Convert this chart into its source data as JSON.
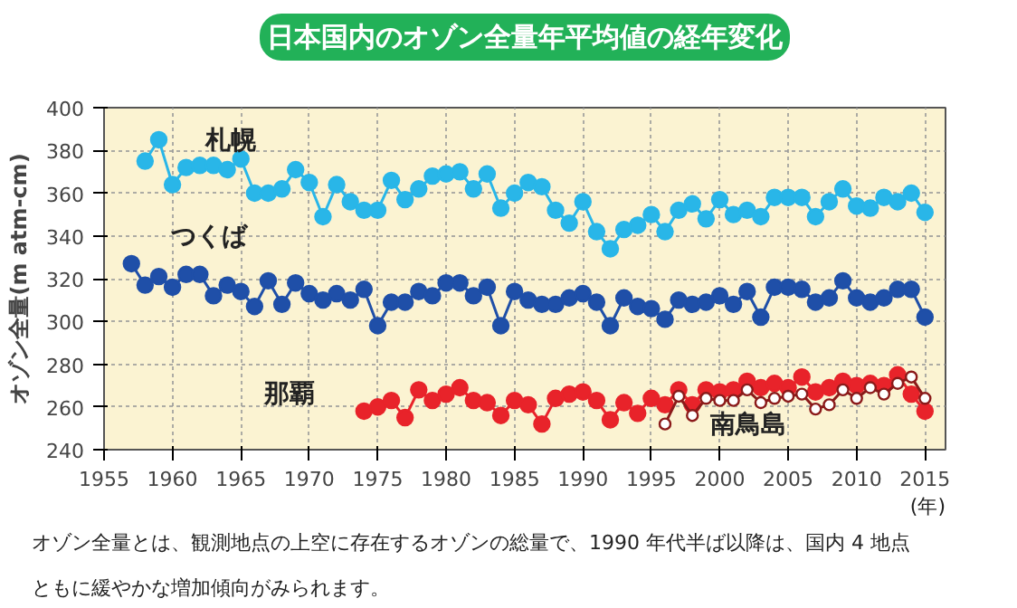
{
  "chart_data": {
    "type": "line",
    "title": "日本国内のオゾン全量年平均値の経年変化",
    "xlabel": "(年)",
    "ylabel": "オゾン全量(m atm-cm)",
    "xlim": [
      1955,
      2016.5
    ],
    "xticks": [
      1955,
      1960,
      1965,
      1970,
      1975,
      1980,
      1985,
      1990,
      1995,
      2000,
      2005,
      2010,
      2015
    ],
    "ylim": [
      240,
      400
    ],
    "yticks": [
      240,
      260,
      280,
      300,
      320,
      340,
      360,
      380,
      400
    ],
    "grid": true,
    "marker": "circle",
    "line_style": "solid",
    "annotations": [
      "オゾン全量とは、観測地点の上空に存在するオゾンの総量で、1990 年代半ば以降は、国内 4 地点ともに緩やかな増加傾向がみられます。"
    ],
    "series": [
      {
        "name": "札幌",
        "color": "#29b6e8",
        "x": [
          1958,
          1959,
          1960,
          1961,
          1962,
          1963,
          1964,
          1965,
          1966,
          1967,
          1968,
          1969,
          1970,
          1971,
          1972,
          1973,
          1974,
          1975,
          1976,
          1977,
          1978,
          1979,
          1980,
          1981,
          1982,
          1983,
          1984,
          1985,
          1986,
          1987,
          1988,
          1989,
          1990,
          1991,
          1992,
          1993,
          1994,
          1995,
          1996,
          1997,
          1998,
          1999,
          2000,
          2001,
          2002,
          2003,
          2004,
          2005,
          2006,
          2007,
          2008,
          2009,
          2010,
          2011,
          2012,
          2013,
          2014,
          2015
        ],
        "values": [
          375,
          385,
          364,
          372,
          373,
          373,
          371,
          376,
          360,
          360,
          362,
          371,
          365,
          349,
          364,
          356,
          352,
          352,
          366,
          357,
          362,
          368,
          369,
          370,
          362,
          369,
          353,
          360,
          365,
          363,
          352,
          346,
          356,
          342,
          334,
          343,
          345,
          350,
          342,
          352,
          355,
          348,
          357,
          350,
          352,
          349,
          358,
          358,
          358,
          349,
          356,
          362,
          354,
          353,
          358,
          356,
          360,
          351
        ]
      },
      {
        "name": "つくば",
        "color": "#1f4fa8",
        "x": [
          1957,
          1958,
          1959,
          1960,
          1961,
          1962,
          1963,
          1964,
          1965,
          1966,
          1967,
          1968,
          1969,
          1970,
          1971,
          1972,
          1973,
          1974,
          1975,
          1976,
          1977,
          1978,
          1979,
          1980,
          1981,
          1982,
          1983,
          1984,
          1985,
          1986,
          1987,
          1988,
          1989,
          1990,
          1991,
          1992,
          1993,
          1994,
          1995,
          1996,
          1997,
          1998,
          1999,
          2000,
          2001,
          2002,
          2003,
          2004,
          2005,
          2006,
          2007,
          2008,
          2009,
          2010,
          2011,
          2012,
          2013,
          2014,
          2015
        ],
        "values": [
          327,
          317,
          321,
          316,
          322,
          322,
          312,
          317,
          314,
          307,
          319,
          308,
          318,
          313,
          310,
          313,
          310,
          315,
          298,
          309,
          309,
          314,
          312,
          318,
          318,
          312,
          316,
          298,
          314,
          310,
          308,
          308,
          311,
          313,
          309,
          298,
          311,
          307,
          306,
          301,
          310,
          308,
          309,
          312,
          308,
          314,
          302,
          316,
          316,
          315,
          309,
          311,
          319,
          311,
          309,
          311,
          315,
          315,
          302
        ]
      },
      {
        "name": "那覇",
        "color": "#e8232a",
        "x": [
          1974,
          1975,
          1976,
          1977,
          1978,
          1979,
          1980,
          1981,
          1982,
          1983,
          1984,
          1985,
          1986,
          1987,
          1988,
          1989,
          1990,
          1991,
          1992,
          1993,
          1994,
          1995,
          1996,
          1997,
          1998,
          1999,
          2000,
          2001,
          2002,
          2003,
          2004,
          2005,
          2006,
          2007,
          2008,
          2009,
          2010,
          2011,
          2012,
          2013,
          2014,
          2015
        ],
        "values": [
          258,
          260,
          263,
          255,
          268,
          263,
          266,
          269,
          263,
          262,
          256,
          263,
          261,
          252,
          264,
          266,
          267,
          263,
          254,
          262,
          257,
          264,
          261,
          268,
          261,
          268,
          267,
          268,
          272,
          269,
          271,
          269,
          274,
          267,
          269,
          272,
          270,
          271,
          270,
          275,
          266,
          258
        ]
      },
      {
        "name": "南鳥島",
        "color": "#8b1a1a",
        "x": [
          1996,
          1997,
          1998,
          1999,
          2000,
          2001,
          2002,
          2003,
          2004,
          2005,
          2006,
          2007,
          2008,
          2009,
          2010,
          2011,
          2012,
          2013,
          2014,
          2015
        ],
        "values": [
          252,
          265,
          256,
          264,
          263,
          263,
          268,
          262,
          264,
          265,
          266,
          259,
          261,
          268,
          264,
          269,
          266,
          271,
          274,
          264
        ]
      }
    ]
  }
}
